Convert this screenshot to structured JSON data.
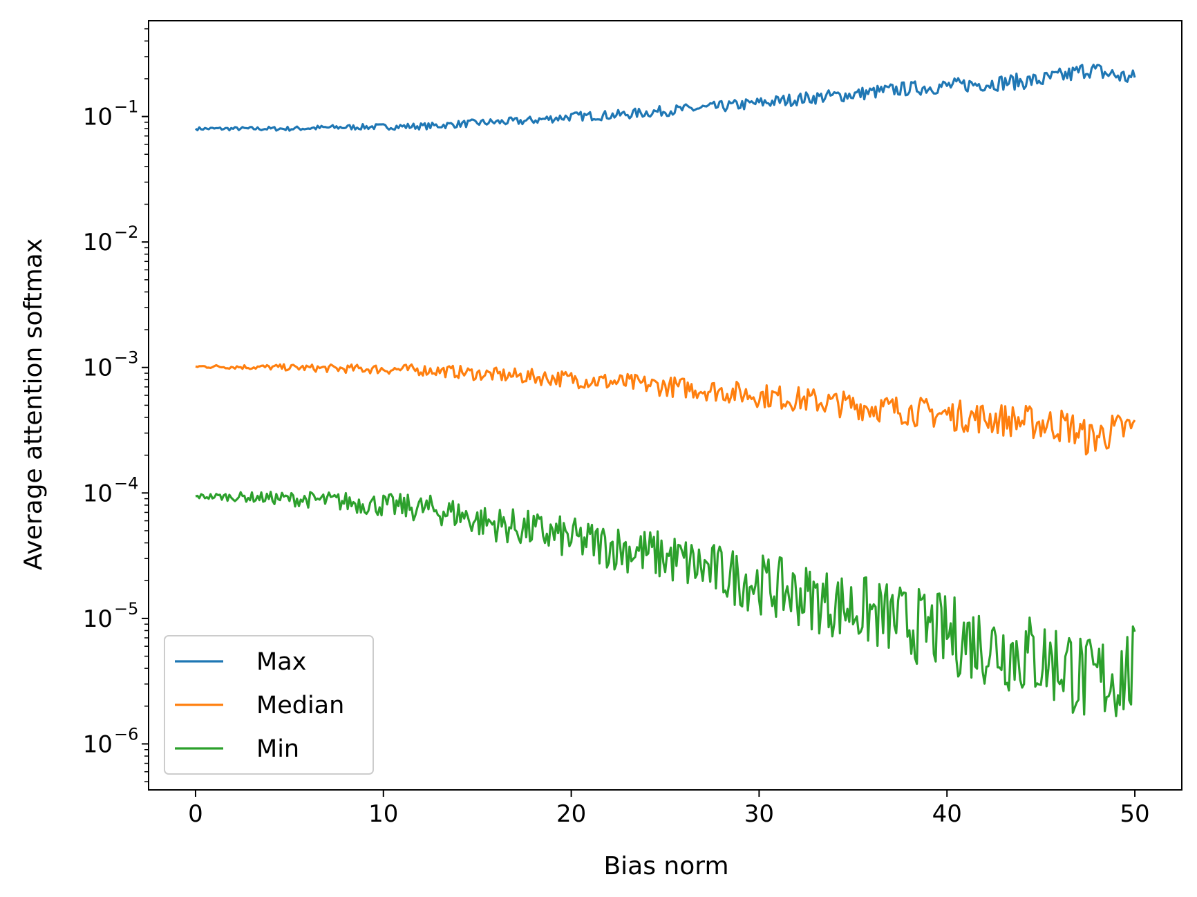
{
  "chart_data": {
    "type": "line",
    "title": "",
    "xlabel": "Bias norm",
    "ylabel": "Average attention softmax",
    "yscale": "log",
    "xlim": [
      -2.5,
      52.5
    ],
    "ylim": [
      4.3e-07,
      0.58
    ],
    "grid": false,
    "legend": "lower-left",
    "x_ticks": [
      "0",
      "10",
      "20",
      "30",
      "40",
      "50"
    ],
    "y_ticks": [
      {
        "base": "10",
        "exp": "−1",
        "value": 0.1
      },
      {
        "base": "10",
        "exp": "−2",
        "value": 0.01
      },
      {
        "base": "10",
        "exp": "−3",
        "value": 0.001
      },
      {
        "base": "10",
        "exp": "−4",
        "value": 0.0001
      },
      {
        "base": "10",
        "exp": "−5",
        "value": 1e-05
      },
      {
        "base": "10",
        "exp": "−6",
        "value": 1e-06
      }
    ],
    "x": [
      0,
      2.5,
      5,
      7.5,
      10,
      12.5,
      14,
      15,
      17.5,
      20,
      22.5,
      25,
      27.5,
      30,
      32.5,
      35,
      37.5,
      40,
      42.5,
      45,
      46.5,
      47.5,
      48.5,
      50
    ],
    "series": [
      {
        "name": "Max",
        "color": "#1f77b4",
        "values": [
          0.08,
          0.08,
          0.08,
          0.082,
          0.083,
          0.084,
          0.087,
          0.089,
          0.092,
          0.1,
          0.103,
          0.111,
          0.118,
          0.128,
          0.14,
          0.15,
          0.165,
          0.175,
          0.185,
          0.195,
          0.215,
          0.24,
          0.22,
          0.2
        ]
      },
      {
        "name": "Median",
        "color": "#ff7f0e",
        "values": [
          0.00102,
          0.00101,
          0.001,
          0.00098,
          0.00097,
          0.00095,
          0.00092,
          0.00089,
          0.00085,
          0.00081,
          0.00076,
          0.00071,
          0.00066,
          0.0006,
          0.00055,
          0.0005,
          0.00046,
          0.00042,
          0.00039,
          0.00036,
          0.00034,
          0.00027,
          0.0003,
          0.00033
        ]
      },
      {
        "name": "Min",
        "color": "#2ca02c",
        "values": [
          9.4e-05,
          9.3e-05,
          9e-05,
          8.6e-05,
          8e-05,
          7.4e-05,
          6.8e-05,
          6e-05,
          5.2e-05,
          4.3e-05,
          3.7e-05,
          3.1e-05,
          2.4e-05,
          1.9e-05,
          1.5e-05,
          1.2e-05,
          9.5e-06,
          7.5e-06,
          6e-06,
          4.8e-06,
          4.2e-06,
          3e-06,
          3.4e-06,
          3.8e-06
        ]
      }
    ]
  }
}
